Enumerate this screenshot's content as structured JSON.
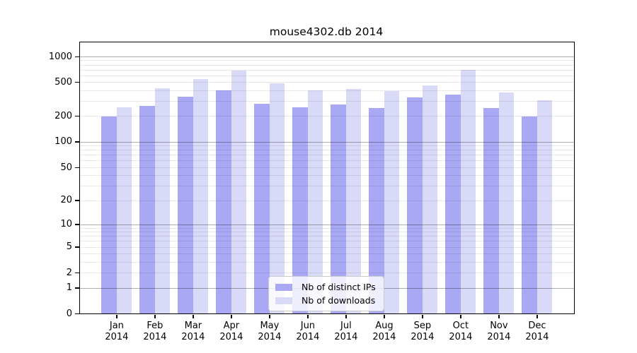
{
  "chart_data": {
    "type": "bar",
    "title": "mouse4302.db 2014",
    "categories": [
      "Jan 2014",
      "Feb 2014",
      "Mar 2014",
      "Apr 2014",
      "May 2014",
      "Jun 2014",
      "Jul 2014",
      "Aug 2014",
      "Sep 2014",
      "Oct 2014",
      "Nov 2014",
      "Dec 2014"
    ],
    "series": [
      {
        "name": "Nb of distinct IPs",
        "color": "#a8a8f4",
        "values": [
          197,
          261,
          335,
          400,
          280,
          255,
          275,
          248,
          331,
          354,
          248,
          199
        ]
      },
      {
        "name": "Nb of downloads",
        "color": "#d9d9f8",
        "values": [
          254,
          423,
          545,
          680,
          480,
          402,
          418,
          389,
          457,
          694,
          375,
          308
        ]
      }
    ],
    "xlabel": "",
    "ylabel": "",
    "yscale": "log1p",
    "ylim": [
      0,
      1450
    ],
    "yticks": [
      1000,
      500,
      200,
      100,
      50,
      20,
      10,
      5,
      2,
      1,
      0
    ],
    "grid_major_at": [
      1,
      10,
      100,
      1000
    ],
    "grid": "major and minor horizontal gridlines drawn over bars",
    "legend_position": "lower center inside plot"
  }
}
